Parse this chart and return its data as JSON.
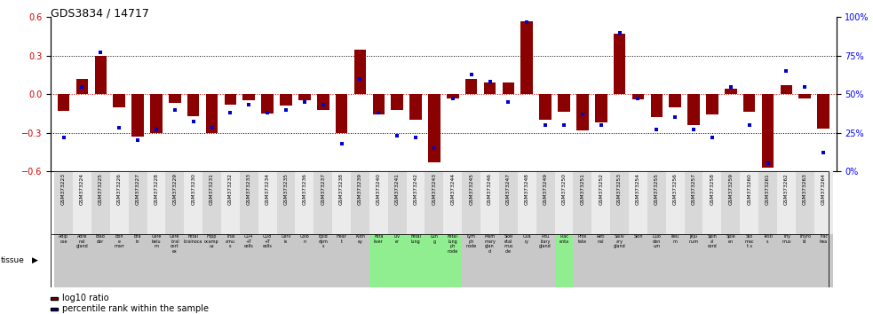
{
  "title": "GDS3834 / 14717",
  "gsm_ids": [
    "GSM373223",
    "GSM373224",
    "GSM373225",
    "GSM373226",
    "GSM373227",
    "GSM373228",
    "GSM373229",
    "GSM373230",
    "GSM373231",
    "GSM373232",
    "GSM373233",
    "GSM373234",
    "GSM373235",
    "GSM373236",
    "GSM373237",
    "GSM373238",
    "GSM373239",
    "GSM373240",
    "GSM373241",
    "GSM373242",
    "GSM373243",
    "GSM373244",
    "GSM373245",
    "GSM373246",
    "GSM373247",
    "GSM373248",
    "GSM373249",
    "GSM373250",
    "GSM373251",
    "GSM373252",
    "GSM373253",
    "GSM373254",
    "GSM373255",
    "GSM373256",
    "GSM373257",
    "GSM373258",
    "GSM373259",
    "GSM373260",
    "GSM373261",
    "GSM373262",
    "GSM373263",
    "GSM373264"
  ],
  "tissue_labels": [
    "Adip\nose",
    "Adre\nnal\ngland",
    "Blad\nder",
    "Bon\ne\nmarr",
    "Bra\nin",
    "Cere\nbelu\nm",
    "Cere\nbral\ncort\nex",
    "Fetal\nbrainoca",
    "Hipp\nocamp\nus",
    "Thal\namu\ns",
    "CD4\n+T\ncells",
    "CD8\n+T\ncells",
    "Cerv\nix",
    "Colo\nn",
    "Epid\ndym\ns",
    "Hear\nt",
    "Kidn\ney",
    "Feta\nliver",
    "Liv\ner",
    "Fetal\nlung",
    "Lun\ng",
    "Fetal\nlung\nph\nnode",
    "Lym\nph\nnode",
    "Mam\nmary\nglan\nd",
    "Skel\netal\nmus\ncle",
    "Ova\nry",
    "Pitu\nitary\ngland",
    "Plac\nenta",
    "Pros\ntate",
    "Reti\nnal",
    "Saliv\nary\ngland",
    "Skin",
    "Duo\nden\num",
    "Ileu\nm",
    "Jeju\nnum",
    "Spin\nal\ncord",
    "Sple\nen",
    "Sto\nmac\nt s",
    "Testi\ns",
    "Thy\nmus",
    "Thyro\nid",
    "Trac\nhea"
  ],
  "tissue_colors": [
    "#c8c8c8",
    "#c8c8c8",
    "#c8c8c8",
    "#c8c8c8",
    "#c8c8c8",
    "#c8c8c8",
    "#c8c8c8",
    "#c8c8c8",
    "#c8c8c8",
    "#c8c8c8",
    "#c8c8c8",
    "#c8c8c8",
    "#c8c8c8",
    "#c8c8c8",
    "#c8c8c8",
    "#c8c8c8",
    "#c8c8c8",
    "#90ee90",
    "#90ee90",
    "#90ee90",
    "#90ee90",
    "#90ee90",
    "#c8c8c8",
    "#c8c8c8",
    "#c8c8c8",
    "#c8c8c8",
    "#c8c8c8",
    "#90ee90",
    "#c8c8c8",
    "#c8c8c8",
    "#c8c8c8",
    "#c8c8c8",
    "#c8c8c8",
    "#c8c8c8",
    "#c8c8c8",
    "#c8c8c8",
    "#c8c8c8",
    "#c8c8c8",
    "#c8c8c8",
    "#c8c8c8",
    "#c8c8c8",
    "#c8c8c8"
  ],
  "log10_ratio": [
    -0.13,
    0.12,
    0.3,
    -0.1,
    -0.33,
    -0.3,
    -0.07,
    -0.17,
    -0.3,
    -0.08,
    -0.05,
    -0.15,
    -0.09,
    -0.05,
    -0.12,
    -0.3,
    0.35,
    -0.16,
    -0.12,
    -0.2,
    -0.53,
    -0.03,
    0.12,
    0.09,
    0.09,
    0.57,
    -0.2,
    -0.14,
    -0.28,
    -0.22,
    0.47,
    -0.04,
    -0.18,
    -0.1,
    -0.24,
    -0.16,
    0.04,
    -0.14,
    -0.57,
    0.07,
    -0.03,
    -0.27
  ],
  "percentile_rank": [
    22,
    55,
    77,
    28,
    20,
    27,
    40,
    32,
    28,
    38,
    43,
    38,
    40,
    45,
    43,
    18,
    60,
    38,
    23,
    22,
    15,
    47,
    63,
    58,
    45,
    97,
    30,
    30,
    37,
    30,
    90,
    47,
    27,
    35,
    27,
    22,
    55,
    30,
    5,
    65,
    55,
    12
  ],
  "bar_color": "#8b0000",
  "point_color": "#0000cd",
  "ylim_left": [
    -0.6,
    0.6
  ],
  "ylim_right": [
    0,
    100
  ],
  "yticks_left": [
    -0.6,
    -0.3,
    0.0,
    0.3,
    0.6
  ],
  "yticks_right": [
    0,
    25,
    50,
    75,
    100
  ],
  "ytick_labels_right": [
    "0%",
    "25%",
    "50%",
    "75%",
    "100%"
  ],
  "hlines": [
    0.3,
    0.0,
    -0.3
  ],
  "legend_bar_label": "log10 ratio",
  "legend_point_label": "percentile rank within the sample"
}
